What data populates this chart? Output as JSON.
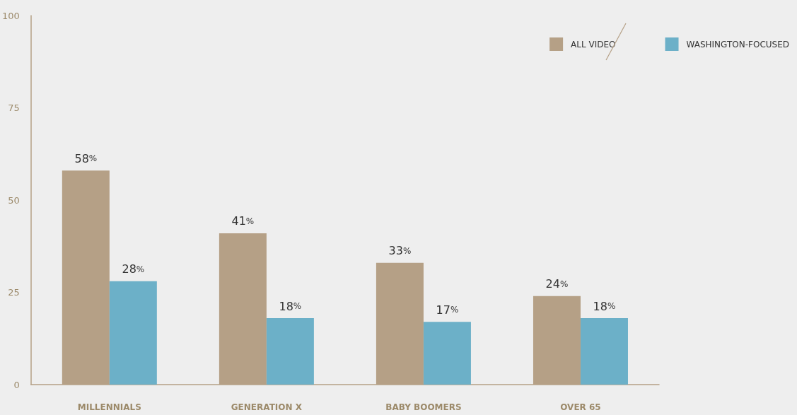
{
  "chart_data": {
    "type": "bar",
    "categories": [
      "MILLENNIALS",
      "GENERATION X",
      "BABY BOOMERS",
      "OVER 65"
    ],
    "series": [
      {
        "name": "ALL VIDEO",
        "color": "#b5a086",
        "values": [
          58,
          41,
          33,
          24
        ],
        "value_labels": [
          "58%",
          "41%",
          "33%",
          "24%"
        ]
      },
      {
        "name": "WASHINGTON-FOCUSED",
        "color": "#6cb0c8",
        "values": [
          28,
          18,
          17,
          18
        ],
        "value_labels": [
          "28%",
          "18%",
          "17%",
          "18%"
        ]
      }
    ],
    "ylim": [
      0,
      100
    ],
    "yticks": [
      0,
      25,
      50,
      75,
      100
    ],
    "grid": false,
    "legend": "top right"
  }
}
